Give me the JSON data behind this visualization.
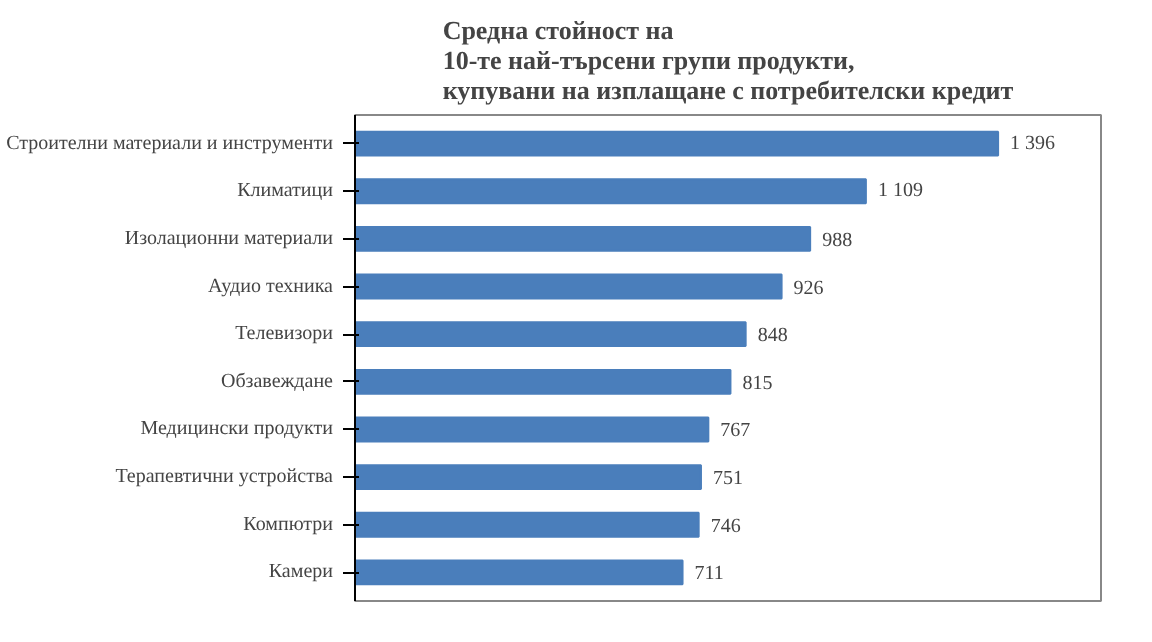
{
  "chart_data": {
    "type": "bar",
    "orientation": "horizontal",
    "title": "Средна стойност на\n10-те най-търсени групи продукти,\nкупувани на изплащане с потребителски кредит",
    "categories": [
      "Строителни материали и инструменти",
      "Климатици",
      "Изолационни материали",
      "Аудио техника",
      "Телевизори",
      "Обзавеждане",
      "Медицински продукти",
      "Терапевтични устройства",
      "Компютри",
      "Камери"
    ],
    "values": [
      1396,
      1109,
      988,
      926,
      848,
      815,
      767,
      751,
      746,
      711
    ],
    "value_labels": [
      "1 396",
      "1 109",
      "988",
      "926",
      "848",
      "815",
      "767",
      "751",
      "746",
      "711"
    ],
    "color": "#4a7ebb",
    "grid": false,
    "tick_labels": "y"
  }
}
